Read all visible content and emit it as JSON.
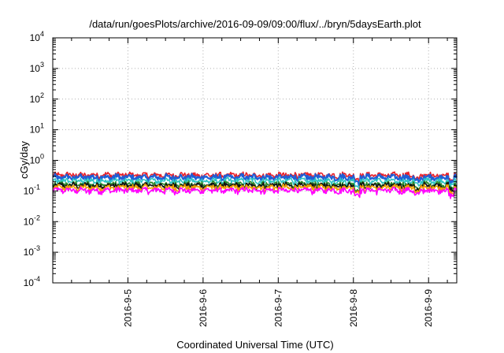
{
  "chart_data": {
    "type": "line",
    "title": "/data/run/goesPlots/archive/2016-09-09/09:00/flux/../bryn/5daysEarth.plot",
    "xlabel": "Coordinated Universal Time (UTC)",
    "ylabel": "cGy/day",
    "y_scale": "log",
    "ylim_exponents": [
      -4,
      4
    ],
    "y_ticks": [
      {
        "base": "10",
        "exp": "4"
      },
      {
        "base": "10",
        "exp": "3"
      },
      {
        "base": "10",
        "exp": "2"
      },
      {
        "base": "10",
        "exp": "1"
      },
      {
        "base": "10",
        "exp": "0"
      },
      {
        "base": "10",
        "exp": "-1"
      },
      {
        "base": "10",
        "exp": "-2"
      },
      {
        "base": "10",
        "exp": "-3"
      },
      {
        "base": "10",
        "exp": "-4"
      }
    ],
    "x_range": [
      "2016-09-04 00:00",
      "2016-09-09 09:00"
    ],
    "x_ticks": [
      "2016-9-5",
      "2016-9-6",
      "2016-9-7",
      "2016-9-8",
      "2016-9-9"
    ],
    "x_tick_dates": [
      "2016-09-05",
      "2016-09-06",
      "2016-09-07",
      "2016-09-08",
      "2016-09-09"
    ],
    "grid": true,
    "legend": "none",
    "dip_days": [
      4.05,
      4.85,
      5.3,
      6.05,
      6.6,
      6.7,
      8.1,
      8.35,
      8.7,
      8.85
    ],
    "series": [
      {
        "color": "#e8202a",
        "base": 0.33
      },
      {
        "color": "#1f5fd6",
        "base": 0.28
      },
      {
        "color": "#2ec4c4",
        "base": 0.215
      },
      {
        "color": "#2a8a2a",
        "base": 0.165
      },
      {
        "color": "#111111",
        "base": 0.15
      },
      {
        "color": "#f0a000",
        "base": 0.13
      },
      {
        "color": "#ff00ff",
        "base": 0.105
      }
    ]
  }
}
